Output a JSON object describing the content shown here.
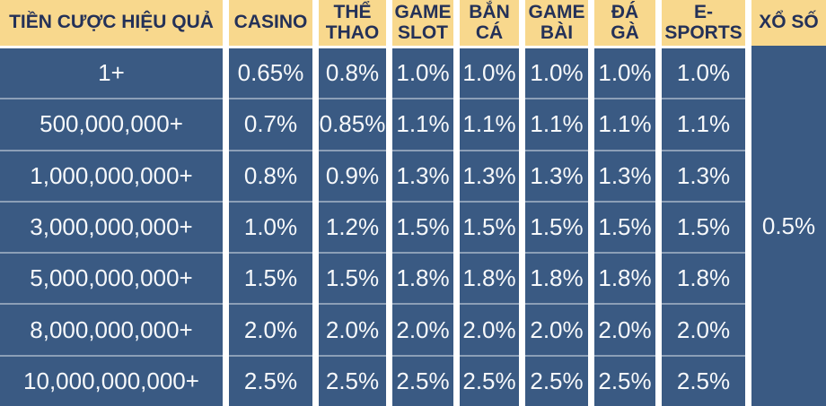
{
  "chart_data": {
    "type": "table",
    "columns": [
      {
        "name": "tier",
        "label": "TIỀN CƯỢC HIỆU QUẢ"
      },
      {
        "name": "casino",
        "label": "CASINO"
      },
      {
        "name": "the-thao",
        "label": "THỂ\nTHAO"
      },
      {
        "name": "game-slot",
        "label": "GAME\nSLOT"
      },
      {
        "name": "ban-ca",
        "label": "BẮN\nCÁ"
      },
      {
        "name": "game-bai",
        "label": "GAME\nBÀI"
      },
      {
        "name": "da-ga",
        "label": "ĐÁ\nGÀ"
      },
      {
        "name": "e-sports",
        "label": "E-\nSPORTS"
      },
      {
        "name": "xo-so",
        "label": "XỔ SỐ"
      }
    ],
    "rows": [
      {
        "tier": "1+",
        "values": [
          "0.65%",
          "0.8%",
          "1.0%",
          "1.0%",
          "1.0%",
          "1.0%",
          "1.0%"
        ]
      },
      {
        "tier": "500,000,000+",
        "values": [
          "0.7%",
          "0.85%",
          "1.1%",
          "1.1%",
          "1.1%",
          "1.1%",
          "1.1%"
        ]
      },
      {
        "tier": "1,000,000,000+",
        "values": [
          "0.8%",
          "0.9%",
          "1.3%",
          "1.3%",
          "1.3%",
          "1.3%",
          "1.3%"
        ]
      },
      {
        "tier": "3,000,000,000+",
        "values": [
          "1.0%",
          "1.2%",
          "1.5%",
          "1.5%",
          "1.5%",
          "1.5%",
          "1.5%"
        ]
      },
      {
        "tier": "5,000,000,000+",
        "values": [
          "1.5%",
          "1.5%",
          "1.8%",
          "1.8%",
          "1.8%",
          "1.8%",
          "1.8%"
        ]
      },
      {
        "tier": "8,000,000,000+",
        "values": [
          "2.0%",
          "2.0%",
          "2.0%",
          "2.0%",
          "2.0%",
          "2.0%",
          "2.0%"
        ]
      },
      {
        "tier": "10,000,000,000+",
        "values": [
          "2.5%",
          "2.5%",
          "2.5%",
          "2.5%",
          "2.5%",
          "2.5%",
          "2.5%"
        ]
      }
    ],
    "merged_cell": {
      "column": "XỔ SỐ",
      "value": "0.5%",
      "rowspan": 7
    }
  },
  "colors": {
    "header_bg": "#f8d88d",
    "header_text": "#243158",
    "cell_bg": "#3a5a83",
    "cell_text": "#f7f9fb",
    "gap": "#ffffff"
  }
}
